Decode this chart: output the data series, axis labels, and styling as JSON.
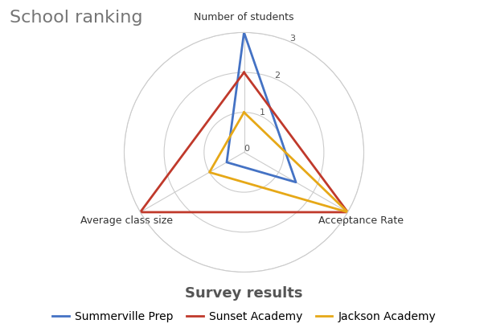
{
  "title": "School ranking",
  "categories": [
    "Number of students",
    "Acceptance Rate",
    "Average class size"
  ],
  "series": [
    {
      "name": "Summerville Prep",
      "values": [
        3,
        1.5,
        0.5
      ],
      "color": "#4472C4",
      "linewidth": 2
    },
    {
      "name": "Sunset Academy",
      "values": [
        2,
        3,
        3
      ],
      "color": "#C0392B",
      "linewidth": 2
    },
    {
      "name": "Jackson Academy",
      "values": [
        1,
        3,
        1
      ],
      "color": "#E6A817",
      "linewidth": 2
    }
  ],
  "r_max": 3,
  "r_ticks": [
    0,
    1,
    2,
    3
  ],
  "grid_color": "#CCCCCC",
  "background_color": "#FFFFFF",
  "title_fontsize": 16,
  "title_color": "#757575",
  "label_fontsize": 9,
  "xlabel": "Survey results",
  "xlabel_fontsize": 13,
  "xlabel_color": "#555555",
  "legend_fontsize": 10
}
